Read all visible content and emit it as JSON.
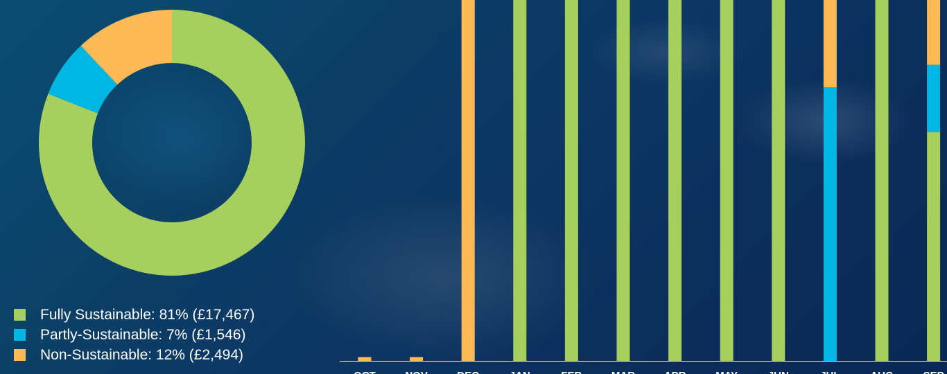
{
  "chart_data": [
    {
      "type": "pie",
      "style": "donut",
      "slices": [
        {
          "label": "Fully Sustainable",
          "percent": 81,
          "amount": "£17,467",
          "color": "#a6cf5d"
        },
        {
          "label": "Partly-Sustainable",
          "percent": 7,
          "amount": "£1,546",
          "color": "#00b7e4"
        },
        {
          "label": "Non-Sustainable",
          "percent": 12,
          "amount": "£2,494",
          "color": "#fcba57"
        }
      ],
      "legend": {
        "placement": "bottom-left",
        "entries": [
          "Fully Sustainable: 81% (£17,467)",
          "Partly-Sustainable: 7% (£1,546)",
          "Non-Sustainable: 12% (£2,494)"
        ]
      }
    },
    {
      "type": "bar",
      "stacked": true,
      "value_unit": "percent of monthly spend",
      "categories": [
        "OCT",
        "NOV",
        "DEC",
        "JAN",
        "FEB",
        "MAR",
        "APR",
        "MAY",
        "JUN",
        "JUL",
        "AUG",
        "SEP"
      ],
      "ylim": [
        0,
        100
      ],
      "grid": false,
      "series": [
        {
          "name": "Fully Sustainable",
          "color": "#a6cf5d",
          "values": [
            0,
            0,
            0,
            100,
            100,
            100,
            100,
            100,
            100,
            0,
            100,
            61
          ]
        },
        {
          "name": "Partly-Sustainable",
          "color": "#00b7e4",
          "values": [
            0,
            0,
            0,
            0,
            0,
            0,
            0,
            0,
            0,
            73,
            0,
            18
          ]
        },
        {
          "name": "Non-Sustainable",
          "color": "#fcba57",
          "values": [
            1,
            1,
            100,
            0,
            0,
            0,
            0,
            0,
            0,
            27,
            0,
            21
          ]
        }
      ]
    }
  ]
}
